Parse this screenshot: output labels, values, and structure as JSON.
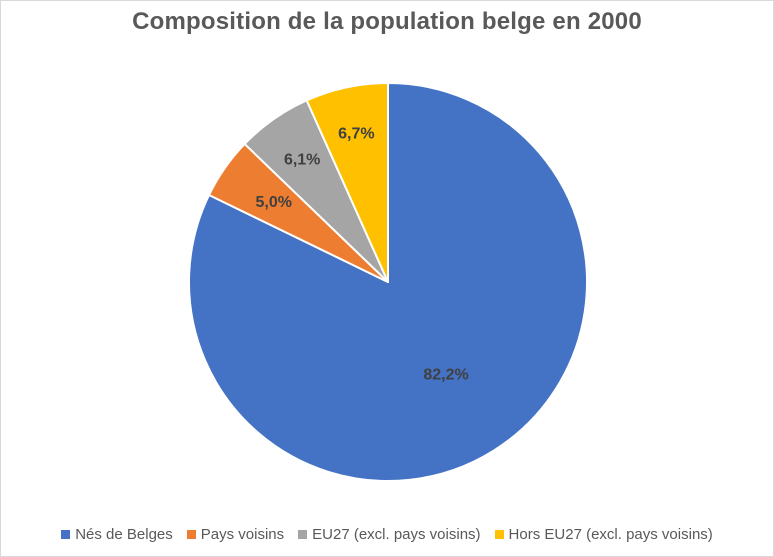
{
  "chart_data": {
    "type": "pie",
    "title": "Composition de la population belge en 2000",
    "slices": [
      {
        "label": "Nés de Belges",
        "value": 82.2,
        "display": "82,2%",
        "color": "#4472c4"
      },
      {
        "label": "Pays voisins",
        "value": 5.0,
        "display": "5,0%",
        "color": "#ed7d31"
      },
      {
        "label": "EU27 (excl. pays voisins)",
        "value": 6.1,
        "display": "6,1%",
        "color": "#a5a5a5"
      },
      {
        "label": "Hors EU27 (excl. pays voisins)",
        "value": 6.7,
        "display": "6,7%",
        "color": "#ffc000"
      }
    ],
    "legend_position": "bottom"
  }
}
